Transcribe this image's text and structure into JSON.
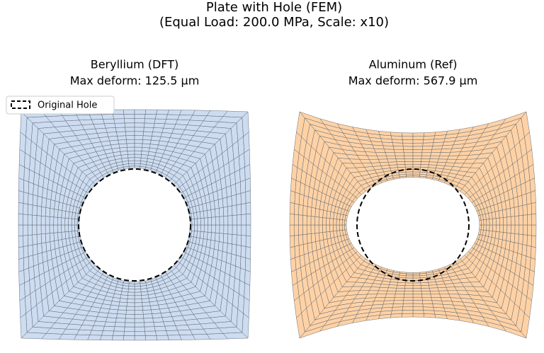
{
  "header": {
    "title": "Plate with Hole (FEM)",
    "subtitle": "(Equal Load: 200.0 MPa, Scale: x10)"
  },
  "panels": [
    {
      "title": "Beryllium (DFT)",
      "subtitle": "Max deform: 125.5 μm"
    },
    {
      "title": "Aluminum (Ref)",
      "subtitle": "Max deform: 567.9 μm"
    }
  ],
  "legend": {
    "label": "Original Hole"
  }
}
